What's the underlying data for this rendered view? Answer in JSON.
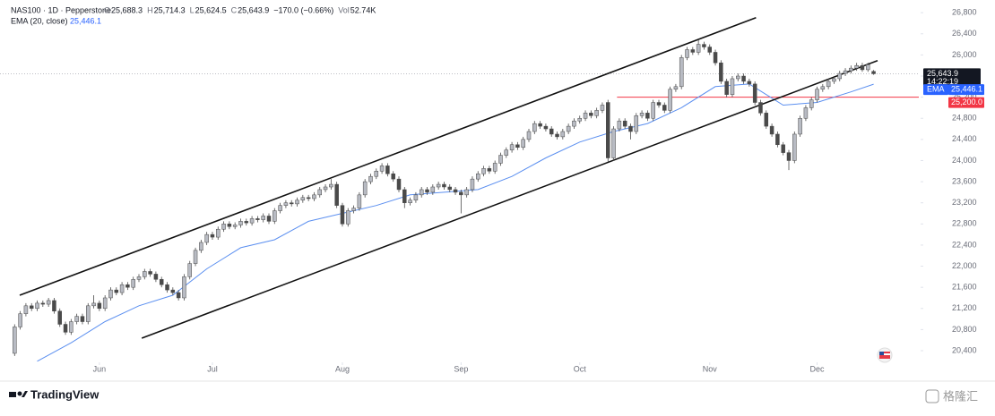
{
  "chart_data": {
    "type": "candlestick",
    "symbol": "NAS100 · 1D · Pepperstone",
    "legend": {
      "labels": [
        "O",
        "H",
        "L",
        "C"
      ],
      "values": [
        "25,688.3",
        "25,714.3",
        "25,624.5",
        "25,643.9"
      ],
      "change": "−170.0 (−0.66%)",
      "vol_label": "Vol",
      "vol": "52.74K"
    },
    "ema_legend": {
      "name": "EMA (20, close)",
      "value": "25,446.1"
    },
    "up_color": "#b8bbc3",
    "down_color": "#4a4a4a",
    "ylim": [
      20180,
      27040
    ],
    "xlim": [
      -1,
      160
    ],
    "yticks": [
      {
        "value": 20400,
        "label": "20,400"
      },
      {
        "value": 20800,
        "label": "20,800"
      },
      {
        "value": 21200,
        "label": "21,200"
      },
      {
        "value": 21600,
        "label": "21,600"
      },
      {
        "value": 22000,
        "label": "22,000"
      },
      {
        "value": 22400,
        "label": "22,400"
      },
      {
        "value": 22800,
        "label": "22,800"
      },
      {
        "value": 23200,
        "label": "23,200"
      },
      {
        "value": 23600,
        "label": "23,600"
      },
      {
        "value": 24000,
        "label": "24,000"
      },
      {
        "value": 24400,
        "label": "24,400"
      },
      {
        "value": 24800,
        "label": "24,800"
      },
      {
        "value": 25200,
        "label": "25,200"
      },
      {
        "value": 25600,
        "label": "25,600"
      },
      {
        "value": 26000,
        "label": "26,000"
      },
      {
        "value": 26400,
        "label": "26,400"
      },
      {
        "value": 26800,
        "label": "26,800"
      }
    ],
    "xticks": [
      {
        "value": 15,
        "label": "Jun"
      },
      {
        "value": 35,
        "label": "Jul"
      },
      {
        "value": 58,
        "label": "Aug"
      },
      {
        "value": 79,
        "label": "Sep"
      },
      {
        "value": 100,
        "label": "Oct"
      },
      {
        "value": 123,
        "label": "Nov"
      },
      {
        "value": 142,
        "label": "Dec"
      }
    ],
    "ohlc": [
      [
        20350,
        20900,
        20300,
        20850
      ],
      [
        20850,
        21150,
        20800,
        21100
      ],
      [
        21100,
        21300,
        21050,
        21250
      ],
      [
        21250,
        21300,
        21150,
        21200
      ],
      [
        21200,
        21350,
        21150,
        21300
      ],
      [
        21300,
        21350,
        21230,
        21280
      ],
      [
        21280,
        21400,
        21230,
        21350
      ],
      [
        21350,
        21400,
        21100,
        21150
      ],
      [
        21150,
        21200,
        20850,
        20900
      ],
      [
        20900,
        20950,
        20700,
        20750
      ],
      [
        20750,
        21000,
        20700,
        20950
      ],
      [
        20950,
        21100,
        20900,
        21050
      ],
      [
        21050,
        21100,
        20900,
        20950
      ],
      [
        20950,
        21300,
        20900,
        21250
      ],
      [
        21250,
        21450,
        21200,
        21300
      ],
      [
        21300,
        21350,
        21150,
        21200
      ],
      [
        21200,
        21450,
        21150,
        21400
      ],
      [
        21400,
        21600,
        21350,
        21550
      ],
      [
        21550,
        21600,
        21450,
        21500
      ],
      [
        21500,
        21700,
        21450,
        21650
      ],
      [
        21650,
        21700,
        21550,
        21600
      ],
      [
        21600,
        21800,
        21550,
        21750
      ],
      [
        21750,
        21850,
        21700,
        21800
      ],
      [
        21800,
        21950,
        21750,
        21900
      ],
      [
        21900,
        21950,
        21800,
        21850
      ],
      [
        21850,
        21900,
        21700,
        21750
      ],
      [
        21750,
        21800,
        21600,
        21650
      ],
      [
        21650,
        21700,
        21500,
        21550
      ],
      [
        21550,
        21600,
        21450,
        21500
      ],
      [
        21500,
        21550,
        21350,
        21400
      ],
      [
        21400,
        21850,
        21350,
        21800
      ],
      [
        21800,
        22100,
        21750,
        22050
      ],
      [
        22050,
        22350,
        22000,
        22300
      ],
      [
        22300,
        22500,
        22250,
        22450
      ],
      [
        22450,
        22650,
        22400,
        22600
      ],
      [
        22600,
        22650,
        22500,
        22550
      ],
      [
        22550,
        22750,
        22500,
        22700
      ],
      [
        22700,
        22850,
        22650,
        22800
      ],
      [
        22800,
        22850,
        22700,
        22750
      ],
      [
        22750,
        22830,
        22700,
        22780
      ],
      [
        22780,
        22900,
        22730,
        22850
      ],
      [
        22850,
        22900,
        22770,
        22820
      ],
      [
        22820,
        22950,
        22770,
        22900
      ],
      [
        22900,
        22950,
        22830,
        22880
      ],
      [
        22880,
        23000,
        22830,
        22950
      ],
      [
        22950,
        23000,
        22800,
        22850
      ],
      [
        22850,
        23100,
        22800,
        23050
      ],
      [
        23050,
        23200,
        23000,
        23150
      ],
      [
        23150,
        23250,
        23100,
        23200
      ],
      [
        23200,
        23250,
        23130,
        23180
      ],
      [
        23180,
        23300,
        23130,
        23250
      ],
      [
        23250,
        23350,
        23200,
        23300
      ],
      [
        23300,
        23350,
        23230,
        23280
      ],
      [
        23280,
        23400,
        23230,
        23350
      ],
      [
        23350,
        23500,
        23300,
        23450
      ],
      [
        23450,
        23550,
        23400,
        23500
      ],
      [
        23500,
        23650,
        23450,
        23550
      ],
      [
        23550,
        23600,
        23100,
        23150
      ],
      [
        23150,
        23200,
        22750,
        22800
      ],
      [
        22800,
        23100,
        22750,
        23050
      ],
      [
        23050,
        23150,
        23000,
        23100
      ],
      [
        23100,
        23400,
        23050,
        23350
      ],
      [
        23350,
        23650,
        23300,
        23600
      ],
      [
        23600,
        23750,
        23550,
        23700
      ],
      [
        23700,
        23850,
        23650,
        23800
      ],
      [
        23800,
        23950,
        23750,
        23900
      ],
      [
        23900,
        23950,
        23700,
        23750
      ],
      [
        23750,
        23800,
        23600,
        23650
      ],
      [
        23650,
        23700,
        23400,
        23450
      ],
      [
        23450,
        23500,
        23100,
        23200
      ],
      [
        23200,
        23300,
        23150,
        23250
      ],
      [
        23250,
        23400,
        23200,
        23350
      ],
      [
        23350,
        23500,
        23300,
        23450
      ],
      [
        23450,
        23500,
        23350,
        23400
      ],
      [
        23400,
        23550,
        23350,
        23500
      ],
      [
        23500,
        23600,
        23450,
        23550
      ],
      [
        23550,
        23600,
        23450,
        23500
      ],
      [
        23500,
        23550,
        23400,
        23450
      ],
      [
        23450,
        23500,
        23350,
        23400
      ],
      [
        23400,
        23450,
        23000,
        23350
      ],
      [
        23350,
        23500,
        23300,
        23450
      ],
      [
        23450,
        23700,
        23400,
        23650
      ],
      [
        23650,
        23800,
        23600,
        23750
      ],
      [
        23750,
        23900,
        23700,
        23850
      ],
      [
        23850,
        23900,
        23750,
        23800
      ],
      [
        23800,
        24000,
        23750,
        23950
      ],
      [
        23950,
        24150,
        23900,
        24100
      ],
      [
        24100,
        24250,
        24050,
        24200
      ],
      [
        24200,
        24350,
        24150,
        24300
      ],
      [
        24300,
        24350,
        24200,
        24250
      ],
      [
        24250,
        24450,
        24200,
        24400
      ],
      [
        24400,
        24600,
        24350,
        24550
      ],
      [
        24550,
        24750,
        24500,
        24700
      ],
      [
        24700,
        24750,
        24600,
        24650
      ],
      [
        24650,
        24700,
        24550,
        24600
      ],
      [
        24600,
        24650,
        24450,
        24500
      ],
      [
        24500,
        24550,
        24400,
        24450
      ],
      [
        24450,
        24600,
        24400,
        24550
      ],
      [
        24550,
        24700,
        24500,
        24650
      ],
      [
        24650,
        24800,
        24600,
        24750
      ],
      [
        24750,
        24850,
        24700,
        24800
      ],
      [
        24800,
        24950,
        24750,
        24900
      ],
      [
        24900,
        24950,
        24800,
        24850
      ],
      [
        24850,
        25000,
        24800,
        24950
      ],
      [
        24950,
        25100,
        24900,
        25050
      ],
      [
        25100,
        25150,
        23980,
        24050
      ],
      [
        24050,
        24650,
        24000,
        24600
      ],
      [
        24600,
        24800,
        24550,
        24750
      ],
      [
        24750,
        24800,
        24600,
        24650
      ],
      [
        24650,
        24700,
        24400,
        24550
      ],
      [
        24550,
        24900,
        24500,
        24850
      ],
      [
        24850,
        24950,
        24800,
        24900
      ],
      [
        24900,
        24950,
        24750,
        24800
      ],
      [
        24800,
        25150,
        24750,
        25100
      ],
      [
        25100,
        25150,
        25000,
        25050
      ],
      [
        25050,
        25100,
        24900,
        24950
      ],
      [
        24950,
        25400,
        24900,
        25350
      ],
      [
        25350,
        25450,
        25300,
        25400
      ],
      [
        25400,
        26000,
        25350,
        25950
      ],
      [
        25950,
        26150,
        25900,
        26100
      ],
      [
        26100,
        26150,
        26000,
        26050
      ],
      [
        26050,
        26280,
        26000,
        26200
      ],
      [
        26200,
        26250,
        26100,
        26150
      ],
      [
        26150,
        26200,
        26000,
        26050
      ],
      [
        26050,
        26100,
        25800,
        25850
      ],
      [
        25850,
        25900,
        25450,
        25500
      ],
      [
        25500,
        25550,
        25200,
        25250
      ],
      [
        25250,
        25600,
        25200,
        25550
      ],
      [
        25550,
        25650,
        25500,
        25600
      ],
      [
        25600,
        25650,
        25450,
        25500
      ],
      [
        25500,
        25550,
        25400,
        25450
      ],
      [
        25450,
        25500,
        25050,
        25100
      ],
      [
        25100,
        25150,
        24850,
        24900
      ],
      [
        24900,
        24950,
        24600,
        24650
      ],
      [
        24650,
        24700,
        24450,
        24500
      ],
      [
        24500,
        24550,
        24250,
        24300
      ],
      [
        24300,
        24350,
        24100,
        24150
      ],
      [
        24150,
        24200,
        23820,
        24000
      ],
      [
        24000,
        24550,
        23950,
        24500
      ],
      [
        24500,
        24850,
        24450,
        24800
      ],
      [
        24800,
        25050,
        24750,
        25000
      ],
      [
        25000,
        25200,
        24950,
        25150
      ],
      [
        25150,
        25400,
        25100,
        25350
      ],
      [
        25350,
        25450,
        25300,
        25400
      ],
      [
        25400,
        25550,
        25350,
        25500
      ],
      [
        25500,
        25600,
        25450,
        25550
      ],
      [
        25550,
        25700,
        25500,
        25650
      ],
      [
        25650,
        25750,
        25600,
        25700
      ],
      [
        25700,
        25800,
        25650,
        25750
      ],
      [
        25750,
        25850,
        25700,
        25800
      ],
      [
        25800,
        25850,
        25680,
        25720
      ],
      [
        25720,
        25850,
        25680,
        25813.9
      ],
      [
        25688.3,
        25714.3,
        25624.5,
        25643.9
      ]
    ],
    "ema": {
      "name": "EMA",
      "color": "#5b8ff0",
      "x": [
        4,
        10,
        16,
        22,
        28,
        34,
        40,
        46,
        52,
        58,
        64,
        70,
        76,
        82,
        88,
        94,
        100,
        106,
        112,
        118,
        124,
        130,
        136,
        142,
        148,
        152
      ],
      "values": [
        20200,
        20550,
        20950,
        21250,
        21450,
        21950,
        22350,
        22500,
        22850,
        23000,
        23150,
        23350,
        23400,
        23450,
        23700,
        24050,
        24350,
        24550,
        24700,
        25000,
        25400,
        25450,
        25050,
        25100,
        25300,
        25446.1
      ]
    },
    "trendlines": [
      {
        "x": [
          0.9,
          131.2
        ],
        "values": [
          21451,
          26705
        ],
        "color": "#111111"
      },
      {
        "x": [
          22.5,
          152.7
        ],
        "values": [
          20637,
          25892
        ],
        "color": "#111111"
      }
    ],
    "hline": {
      "value": 25200,
      "label": "25,200.0",
      "start_x": 106.6,
      "color": "#f23645"
    },
    "last_price": {
      "value": 25643.9,
      "label": "25,643.9"
    },
    "countdown": "14:22:19",
    "ema_last": {
      "value": 25446.1,
      "label": "25,446.1"
    },
    "brand": "TradingView",
    "watermark": "格隆汇"
  }
}
